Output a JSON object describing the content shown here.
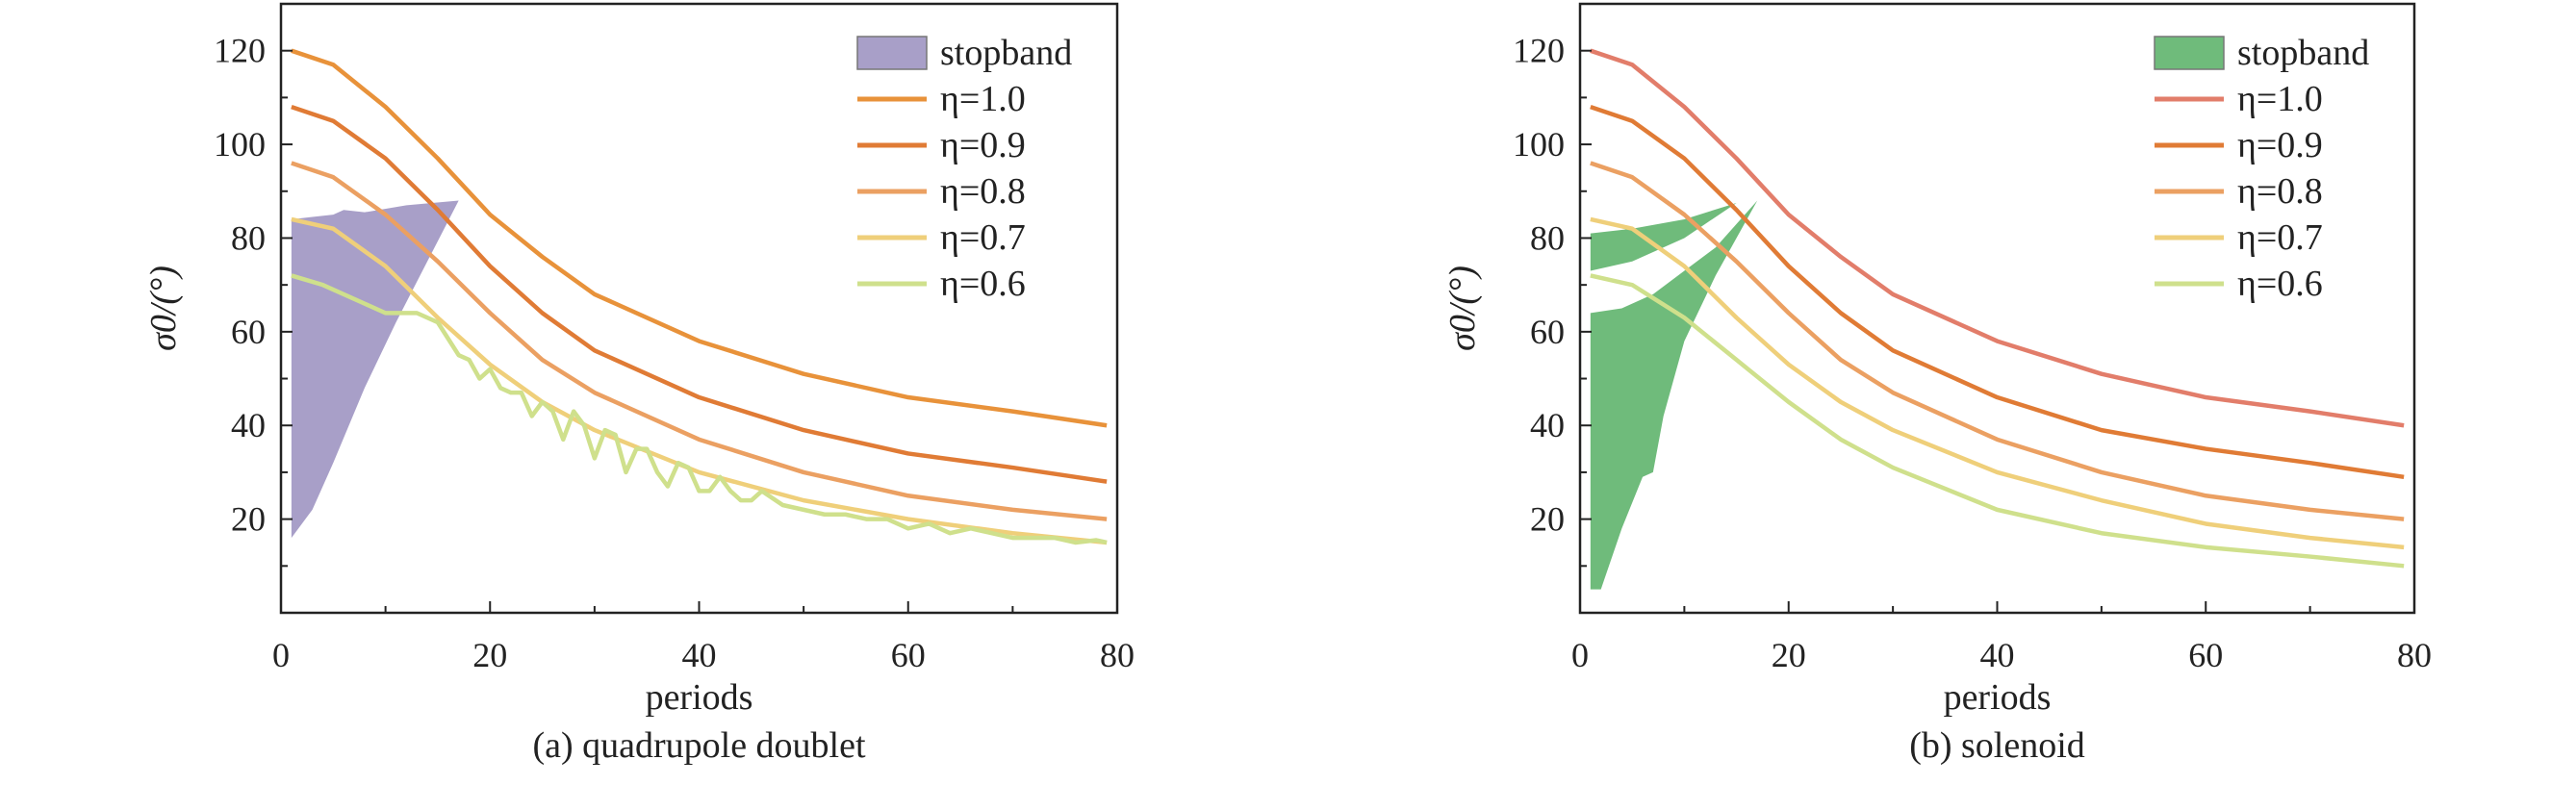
{
  "chart_data": [
    {
      "type": "line",
      "title": "(a) quadrupole doublet",
      "xlabel": "periods",
      "ylabel": "σ0/(°)",
      "xlim": [
        0,
        80
      ],
      "ylim": [
        0,
        130
      ],
      "xticks": [
        0,
        20,
        40,
        60,
        80
      ],
      "yticks": [
        20,
        40,
        60,
        80,
        100,
        120
      ],
      "legend_position": "top-right",
      "stopband_label": "stopband",
      "stopband_color": "#a89fc8",
      "stopband": [
        [
          [
            1,
            16
          ],
          [
            3,
            22
          ],
          [
            5,
            32
          ],
          [
            8,
            48
          ],
          [
            11,
            62
          ],
          [
            14,
            75
          ],
          [
            17,
            88
          ],
          [
            12,
            87
          ],
          [
            8,
            85.5
          ],
          [
            6,
            86
          ],
          [
            5,
            85
          ],
          [
            3,
            84.5
          ],
          [
            1,
            84
          ]
        ]
      ],
      "series": [
        {
          "name": "η=1.0",
          "color": "#e8923a",
          "x": [
            1,
            5,
            10,
            15,
            20,
            25,
            30,
            40,
            50,
            60,
            70,
            79
          ],
          "y": [
            120,
            117,
            108,
            97,
            85,
            76,
            68,
            58,
            51,
            46,
            43,
            40
          ]
        },
        {
          "name": "η=0.9",
          "color": "#e07b35",
          "x": [
            1,
            5,
            10,
            15,
            20,
            25,
            30,
            40,
            50,
            60,
            70,
            79
          ],
          "y": [
            108,
            105,
            97,
            86,
            74,
            64,
            56,
            46,
            39,
            34,
            31,
            28
          ]
        },
        {
          "name": "η=0.8",
          "color": "#eba062",
          "x": [
            1,
            5,
            10,
            15,
            20,
            25,
            30,
            40,
            50,
            60,
            70,
            79
          ],
          "y": [
            96,
            93,
            85,
            75,
            64,
            54,
            47,
            37,
            30,
            25,
            22,
            20
          ]
        },
        {
          "name": "η=0.7",
          "color": "#efcf7a",
          "x": [
            1,
            5,
            10,
            15,
            20,
            25,
            30,
            40,
            50,
            60,
            70,
            79
          ],
          "y": [
            84,
            82,
            74,
            63,
            53,
            45,
            39,
            30,
            24,
            20,
            17,
            15
          ]
        },
        {
          "name": "η=0.6",
          "color": "#cfe08c",
          "x": [
            1,
            4,
            8,
            10,
            13,
            15,
            17,
            18,
            19,
            20,
            21,
            22,
            23,
            24,
            25,
            26,
            27,
            28,
            29,
            30,
            31,
            32,
            33,
            34,
            35,
            36,
            37,
            38,
            39,
            40,
            41,
            42,
            43,
            44,
            45,
            46,
            48,
            50,
            52,
            54,
            56,
            58,
            60,
            62,
            64,
            66,
            68,
            70,
            72,
            74,
            76,
            78,
            79
          ],
          "y": [
            72,
            70,
            66,
            64,
            64,
            62,
            55,
            54,
            50,
            52,
            48,
            47,
            47,
            42,
            45,
            43,
            37,
            43,
            40,
            33,
            39,
            38,
            30,
            35,
            35,
            30,
            27,
            32,
            31,
            26,
            26,
            29,
            26,
            24,
            24,
            26,
            23,
            22,
            21,
            21,
            20,
            20,
            18,
            19,
            17,
            18,
            17,
            16,
            16,
            16,
            15,
            15.5,
            15
          ]
        }
      ]
    },
    {
      "type": "line",
      "title": "(b) solenoid",
      "xlabel": "periods",
      "ylabel": "σ0/(°)",
      "xlim": [
        0,
        80
      ],
      "ylim": [
        0,
        130
      ],
      "xticks": [
        0,
        20,
        40,
        60,
        80
      ],
      "yticks": [
        20,
        40,
        60,
        80,
        100,
        120
      ],
      "legend_position": "top-right",
      "stopband_label": "stopband",
      "stopband_color": "#6fbb7b",
      "stopband": [
        [
          [
            1,
            81
          ],
          [
            5,
            82
          ],
          [
            10,
            84
          ],
          [
            15,
            87.5
          ],
          [
            10,
            80
          ],
          [
            5,
            75
          ],
          [
            1,
            73
          ]
        ],
        [
          [
            1,
            64
          ],
          [
            4,
            65
          ],
          [
            7,
            68
          ],
          [
            10,
            73
          ],
          [
            13,
            78
          ],
          [
            17,
            88
          ],
          [
            13,
            72
          ],
          [
            10,
            58
          ],
          [
            8,
            42
          ],
          [
            7,
            30
          ],
          [
            6,
            29
          ],
          [
            4,
            18
          ],
          [
            2,
            5
          ],
          [
            1,
            5
          ]
        ]
      ],
      "series": [
        {
          "name": "η=1.0",
          "color": "#e27d6a",
          "x": [
            1,
            5,
            10,
            15,
            20,
            25,
            30,
            40,
            50,
            60,
            70,
            79
          ],
          "y": [
            120,
            117,
            108,
            97,
            85,
            76,
            68,
            58,
            51,
            46,
            43,
            40
          ]
        },
        {
          "name": "η=0.9",
          "color": "#e07b35",
          "x": [
            1,
            5,
            10,
            15,
            20,
            25,
            30,
            40,
            50,
            60,
            70,
            79
          ],
          "y": [
            108,
            105,
            97,
            86,
            74,
            64,
            56,
            46,
            39,
            35,
            32,
            29
          ]
        },
        {
          "name": "η=0.8",
          "color": "#eba062",
          "x": [
            1,
            5,
            10,
            15,
            20,
            25,
            30,
            40,
            50,
            60,
            70,
            79
          ],
          "y": [
            96,
            93,
            85,
            75,
            64,
            54,
            47,
            37,
            30,
            25,
            22,
            20
          ]
        },
        {
          "name": "η=0.7",
          "color": "#efcf7a",
          "x": [
            1,
            5,
            10,
            15,
            20,
            25,
            30,
            40,
            50,
            60,
            70,
            79
          ],
          "y": [
            84,
            82,
            74,
            63,
            53,
            45,
            39,
            30,
            24,
            19,
            16,
            14
          ]
        },
        {
          "name": "η=0.6",
          "color": "#cfe08c",
          "x": [
            1,
            5,
            10,
            15,
            20,
            25,
            30,
            40,
            50,
            60,
            70,
            79
          ],
          "y": [
            72,
            70,
            63,
            54,
            45,
            37,
            31,
            22,
            17,
            14,
            12,
            10
          ]
        }
      ]
    }
  ]
}
